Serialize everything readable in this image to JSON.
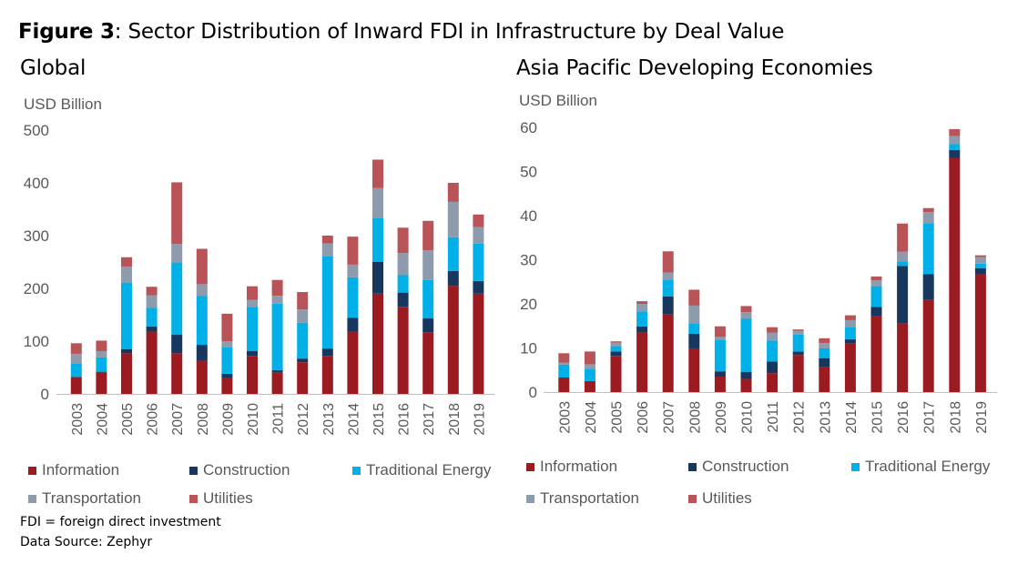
{
  "figure": {
    "label": "Figure 3",
    "title": ": Sector Distribution of Inward FDI in Infrastructure by Deal Value"
  },
  "colors": {
    "Information": "#9b1b20",
    "Construction": "#17375e",
    "Traditional Energy": "#00b0e6",
    "Transportation": "#8e9bad",
    "Utilities": "#b85457"
  },
  "legend": [
    "Information",
    "Construction",
    "Traditional Energy",
    "Transportation",
    "Utilities"
  ],
  "notes": {
    "abbreviation": "FDI = foreign direct investment",
    "source": "Data Source: Zephyr"
  },
  "chart_data": [
    {
      "type": "bar",
      "stacked": true,
      "title": "Global",
      "ylabel": "USD Billion",
      "ylim": [
        0,
        500
      ],
      "yticks": [
        0,
        100,
        200,
        300,
        400,
        500
      ],
      "grid": false,
      "legend_position": "bottom",
      "categories": [
        "2003",
        "2004",
        "2005",
        "2006",
        "2007",
        "2008",
        "2009",
        "2010",
        "2011",
        "2012",
        "2013",
        "2014",
        "2015",
        "2016",
        "2017",
        "2018",
        "2019"
      ],
      "series": [
        {
          "name": "Information",
          "values": [
            32,
            40,
            77,
            118,
            77,
            63,
            30,
            72,
            40,
            60,
            72,
            118,
            190,
            165,
            117,
            205,
            190
          ]
        },
        {
          "name": "Construction",
          "values": [
            0,
            2,
            8,
            10,
            35,
            30,
            8,
            9,
            5,
            7,
            14,
            26,
            60,
            27,
            26,
            28,
            24
          ]
        },
        {
          "name": "Traditional Energy",
          "values": [
            26,
            27,
            126,
            35,
            137,
            93,
            50,
            84,
            126,
            68,
            175,
            77,
            84,
            33,
            73,
            64,
            71
          ]
        },
        {
          "name": "Transportation",
          "values": [
            18,
            12,
            30,
            24,
            35,
            22,
            12,
            13,
            15,
            25,
            24,
            24,
            56,
            42,
            56,
            67,
            31
          ]
        },
        {
          "name": "Utilities",
          "values": [
            20,
            20,
            18,
            16,
            117,
            67,
            52,
            26,
            30,
            33,
            15,
            53,
            54,
            48,
            56,
            36,
            24
          ]
        }
      ]
    },
    {
      "type": "bar",
      "stacked": true,
      "title": "Asia Pacific Developing Economies",
      "ylabel": "USD Billion",
      "ylim": [
        0,
        60
      ],
      "yticks": [
        0,
        10,
        20,
        30,
        40,
        50,
        60
      ],
      "grid": false,
      "legend_position": "bottom",
      "categories": [
        "2003",
        "2004",
        "2005",
        "2006",
        "2007",
        "2008",
        "2009",
        "2010",
        "2011",
        "2012",
        "2013",
        "2014",
        "2015",
        "2016",
        "2017",
        "2018",
        "2019"
      ],
      "series": [
        {
          "name": "Information",
          "values": [
            3.3,
            2.5,
            8.2,
            13.6,
            17.6,
            9.9,
            3.5,
            3.0,
            4.3,
            8.4,
            5.6,
            11.0,
            17.2,
            15.5,
            20.9,
            53.0,
            26.8
          ]
        },
        {
          "name": "Construction",
          "values": [
            0,
            0,
            1.0,
            1.3,
            4.1,
            3.3,
            1.2,
            1.6,
            2.6,
            0.8,
            2.1,
            1.0,
            2.1,
            13.1,
            5.8,
            1.9,
            1.3
          ]
        },
        {
          "name": "Traditional Energy",
          "values": [
            2.9,
            2.8,
            1.2,
            3.4,
            3.8,
            2.4,
            7.2,
            12.0,
            4.8,
            3.8,
            2.2,
            2.8,
            4.7,
            1.0,
            11.6,
            1.3,
            1.0
          ]
        },
        {
          "name": "Transportation",
          "values": [
            0.5,
            1.0,
            0.8,
            1.7,
            1.6,
            4.0,
            0.6,
            1.5,
            1.8,
            0.9,
            1.2,
            1.5,
            1.3,
            2.2,
            2.5,
            1.8,
            1.5
          ]
        },
        {
          "name": "Utilities",
          "values": [
            2.1,
            2.9,
            0.3,
            0.6,
            4.8,
            3.6,
            2.4,
            1.4,
            1.2,
            0.3,
            1.1,
            1.1,
            0.9,
            6.4,
            0.9,
            1.6,
            0.4
          ]
        }
      ]
    }
  ]
}
